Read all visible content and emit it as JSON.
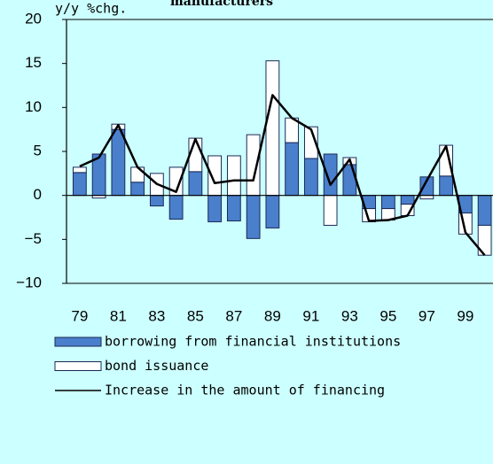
{
  "chart_data": {
    "type": "bar",
    "title": "manufacturers",
    "y_label": "y/y %chg.",
    "categories": [
      "79",
      null,
      "81",
      null,
      "83",
      null,
      "85",
      null,
      "87",
      null,
      "89",
      null,
      "91",
      null,
      "93",
      null,
      "95",
      null,
      "97",
      null,
      "99",
      null
    ],
    "series": [
      {
        "name": "borrowing from financial institutions",
        "type": "bar",
        "color": "#4a7fcc",
        "values": [
          2.6,
          4.7,
          7.5,
          1.5,
          -1.2,
          -2.7,
          2.7,
          -3.0,
          -2.9,
          -4.9,
          -3.7,
          6.0,
          4.2,
          4.7,
          3.5,
          -1.5,
          -1.5,
          -1.0,
          2.1,
          2.2,
          -2.0,
          -3.4
        ]
      },
      {
        "name": "bond issuance",
        "type": "bar",
        "color": "#ffffff",
        "values": [
          0.6,
          -0.3,
          0.6,
          1.7,
          2.5,
          3.2,
          3.8,
          4.5,
          4.5,
          6.9,
          15.3,
          2.8,
          3.6,
          -3.4,
          0.8,
          -1.5,
          -1.3,
          -1.3,
          -0.4,
          3.5,
          -2.4,
          -3.4
        ]
      },
      {
        "name": "Increase in the amount of financing",
        "type": "line",
        "color": "#000000",
        "values": [
          3.3,
          4.3,
          8.0,
          3.2,
          1.3,
          0.4,
          6.4,
          1.4,
          1.7,
          1.7,
          11.4,
          8.8,
          7.5,
          1.2,
          4.1,
          -2.9,
          -2.8,
          -2.3,
          1.7,
          5.6,
          -4.2,
          -6.8
        ]
      }
    ],
    "ylim": [
      -10,
      20
    ],
    "yticks": [
      {
        "value": -10,
        "label": "−10"
      },
      {
        "value": -5,
        "label": "−5"
      },
      0,
      5,
      10,
      15,
      20
    ]
  }
}
